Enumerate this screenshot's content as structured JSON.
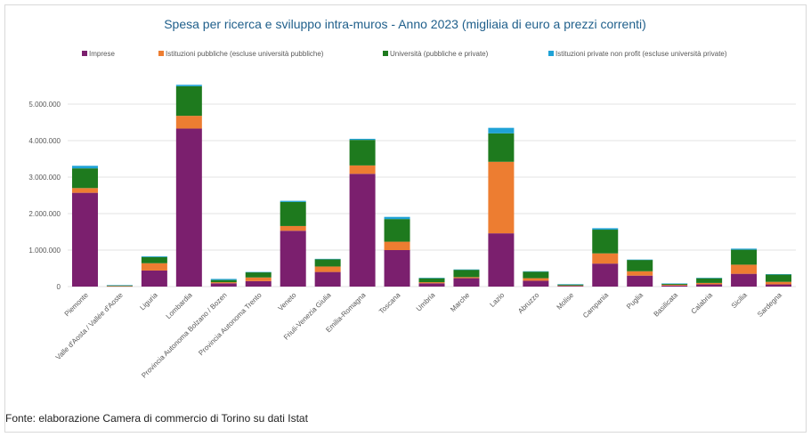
{
  "chart_data": {
    "type": "bar",
    "stacked": true,
    "title": "Spesa per ricerca e sviluppo intra-muros - Anno 2023 (migliaia di euro a prezzi correnti)",
    "xlabel": "",
    "ylabel": "",
    "ylim": [
      0,
      6000000
    ],
    "yticks": [
      0,
      1000000,
      2000000,
      3000000,
      4000000,
      5000000
    ],
    "ytick_labels": [
      "0",
      "1.000.000",
      "2.000.000",
      "3.000.000",
      "4.000.000",
      "5.000.000"
    ],
    "grid": true,
    "legend_position": "top",
    "categories": [
      "Piemonte",
      "Valle d'Aosta / Vallée d'Aoste",
      "Liguria",
      "Lombardia",
      "Provincia Autonoma Bolzano / Bozen",
      "Provincia Autonoma Trento",
      "Veneto",
      "Friuli-Venezia Giulia",
      "Emilia-Romagna",
      "Toscana",
      "Umbria",
      "Marche",
      "Lazio",
      "Abruzzo",
      "Molise",
      "Campania",
      "Puglia",
      "Basilicata",
      "Calabria",
      "Sicilia",
      "Sardegna"
    ],
    "series": [
      {
        "name": "Imprese",
        "color": "#7b1f6e",
        "values": [
          2570000,
          10000,
          440000,
          4330000,
          90000,
          150000,
          1530000,
          400000,
          3090000,
          1000000,
          90000,
          230000,
          1460000,
          160000,
          20000,
          630000,
          300000,
          30000,
          60000,
          350000,
          60000
        ]
      },
      {
        "name": "Istituzioni pubbliche (escluse università pubbliche)",
        "color": "#ed7d31",
        "values": [
          130000,
          5000,
          200000,
          350000,
          30000,
          100000,
          130000,
          150000,
          230000,
          230000,
          30000,
          30000,
          1960000,
          70000,
          10000,
          280000,
          120000,
          20000,
          40000,
          250000,
          70000
        ]
      },
      {
        "name": "Università (pubbliche e private)",
        "color": "#1e7a1e",
        "values": [
          540000,
          20000,
          170000,
          810000,
          60000,
          140000,
          660000,
          200000,
          700000,
          620000,
          110000,
          200000,
          780000,
          180000,
          30000,
          650000,
          310000,
          30000,
          130000,
          410000,
          200000
        ]
      },
      {
        "name": "Istituzioni private non profit (escluse università private)",
        "color": "#1fa2d6",
        "values": [
          70000,
          5000,
          20000,
          40000,
          30000,
          10000,
          30000,
          10000,
          30000,
          60000,
          10000,
          10000,
          150000,
          10000,
          5000,
          40000,
          10000,
          5000,
          10000,
          30000,
          10000
        ]
      }
    ]
  },
  "footer": {
    "source": "Fonte: elaborazione Camera di commercio di Torino su dati Istat"
  }
}
